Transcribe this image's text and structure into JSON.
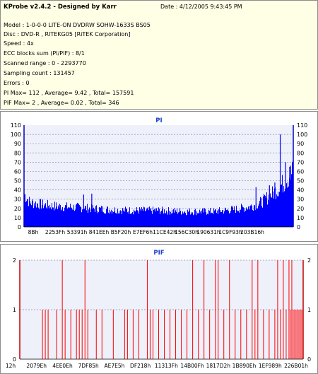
{
  "header": {
    "title": "KProbe v2.4.2 - Designed by Karr",
    "date": "Date : 4/12/2005 9:43:45 PM",
    "lines": [
      "Model : 1-0-0-0 LITE-ON DVDRW SOHW-1633S BS05",
      "Disc : DVD-R , RITEKG05 [RiTEK Corporation]",
      "Speed : 4x",
      "ECC blocks sum (PI/PIF) : 8/1",
      "Scanned range : 0 - 2293770",
      "Sampling count : 131457",
      "Errors : 0",
      "PI Max= 112 , Average= 9.42 , Total= 157591",
      "PIF Max= 2 , Average= 0.02 , Total= 346"
    ]
  },
  "chart_data": [
    {
      "type": "bar",
      "title": "PI",
      "ylim": [
        0,
        110
      ],
      "yticks": [
        "0",
        "10",
        "20",
        "30",
        "40",
        "50",
        "60",
        "70",
        "80",
        "90",
        "100",
        "110"
      ],
      "xticks": [
        "8Bh",
        "2253Fh",
        "53391h",
        "841EEh",
        "B5F20h",
        "E7EF6h",
        "11CE42h",
        "156C30h",
        "190631h",
        "1C9F93h",
        "203B16h"
      ],
      "grid": true,
      "bar_color": "#0000ff",
      "baseline_profile": [
        [
          0.0,
          32
        ],
        [
          0.02,
          24
        ],
        [
          0.06,
          22
        ],
        [
          0.12,
          20
        ],
        [
          0.2,
          19
        ],
        [
          0.3,
          17
        ],
        [
          0.4,
          16
        ],
        [
          0.5,
          16
        ],
        [
          0.6,
          15
        ],
        [
          0.7,
          15
        ],
        [
          0.78,
          17
        ],
        [
          0.84,
          20
        ],
        [
          0.88,
          24
        ],
        [
          0.92,
          32
        ],
        [
          0.96,
          42
        ],
        [
          1.0,
          55
        ]
      ],
      "spikes": [
        {
          "x": 0.22,
          "value": 35
        },
        {
          "x": 0.25,
          "value": 36
        },
        {
          "x": 0.86,
          "value": 43
        },
        {
          "x": 0.91,
          "value": 45
        },
        {
          "x": 0.93,
          "value": 48
        },
        {
          "x": 0.95,
          "value": 100
        },
        {
          "x": 0.97,
          "value": 70
        },
        {
          "x": 0.985,
          "value": 65
        },
        {
          "x": 0.995,
          "value": 70
        }
      ]
    },
    {
      "type": "bar",
      "title": "PIF",
      "ylim": [
        0,
        2
      ],
      "yticks": [
        "0",
        "1",
        "2"
      ],
      "xticks": [
        "12h",
        "2079Eh",
        "4EE0Eh",
        "7DF85h",
        "AE7E5h",
        "DF218h",
        "11313Fh",
        "14B00Fh",
        "1817D2h",
        "1B890Eh",
        "1EF989h",
        "226B01h"
      ],
      "grid": true,
      "bar_color": "#ff0000",
      "twos": [
        0.15,
        0.23,
        0.45,
        0.61,
        0.65,
        0.69,
        0.7,
        0.74,
        0.82,
        0.84,
        0.91,
        0.93,
        0.95,
        0.96
      ],
      "ones": [
        0.08,
        0.09,
        0.1,
        0.13,
        0.16,
        0.18,
        0.2,
        0.21,
        0.22,
        0.24,
        0.27,
        0.29,
        0.33,
        0.37,
        0.38,
        0.4,
        0.42,
        0.46,
        0.47,
        0.49,
        0.51,
        0.53,
        0.55,
        0.57,
        0.59,
        0.63,
        0.67,
        0.72,
        0.76,
        0.78,
        0.8,
        0.83,
        0.86,
        0.88,
        0.9,
        0.92,
        0.94,
        0.955,
        0.965,
        0.97,
        0.975,
        0.98,
        0.985,
        0.99,
        0.995
      ]
    }
  ]
}
